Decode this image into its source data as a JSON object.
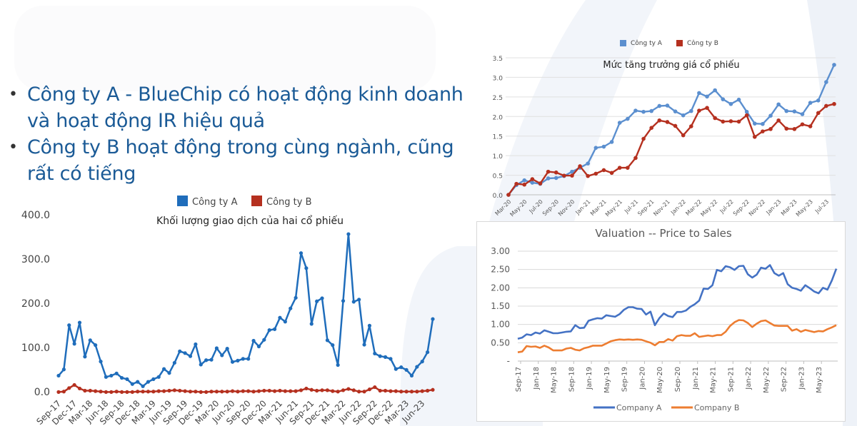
{
  "slide": {
    "bullets": [
      "Công ty A - BlueChip có hoạt động kinh doanh và hoạt động IR hiệu quả",
      "Công ty B hoạt động trong cùng ngành, cũng rất có tiếng"
    ],
    "bullet_lines": [
      [
        "Công ty A - BlueChip có hoạt động kinh doanh",
        "và hoạt động IR hiệu quả"
      ],
      [
        "Công ty B hoạt động trong cùng ngành, cũng",
        "rất có tiếng"
      ]
    ]
  },
  "colors": {
    "text_blue": "#1a5a96",
    "volume_a": "#1f6dbb",
    "volume_b": "#b5301f",
    "growth_a": "#5b8fcf",
    "growth_b": "#b5301f",
    "ps_a": "#4472c4",
    "ps_b": "#ed7d31",
    "grid": "#e0e0e0"
  },
  "chart_data": [
    {
      "id": "volume",
      "type": "line",
      "title": "Khối lượng giao dịch của hai cổ phiếu",
      "legend": [
        "Công ty A",
        "Công ty B"
      ],
      "legend_position": "top",
      "xlabel": "",
      "ylabel": "",
      "ylim": [
        0,
        400
      ],
      "yticks": [
        "0.0",
        "100.0",
        "200.0",
        "300.0",
        "400.0"
      ],
      "grid": false,
      "x_tick_labels": [
        "Sep-17",
        "Dec-17",
        "Mar-18",
        "Jun-18",
        "Sep-18",
        "Dec-18",
        "Mar-19",
        "Jun-19",
        "Sep-19",
        "Dec-19",
        "Mar-20",
        "Jun-20",
        "Sep-20",
        "Dec-20",
        "Mar-21",
        "Jun-21",
        "Sep-21",
        "Dec-21",
        "Mar-22",
        "Jun-22",
        "Sep-22",
        "Dec-22",
        "Mar-23",
        "Jun-23"
      ],
      "series": [
        {
          "name": "Công ty A",
          "values": [
            38,
            52,
            152,
            110,
            158,
            81,
            118,
            107,
            70,
            35,
            38,
            43,
            33,
            30,
            19,
            24,
            14,
            24,
            30,
            35,
            53,
            44,
            67,
            93,
            89,
            82,
            109,
            63,
            73,
            74,
            100,
            84,
            99,
            69,
            72,
            76,
            76,
            117,
            104,
            119,
            141,
            143,
            169,
            160,
            190,
            214,
            315,
            281,
            155,
            206,
            213,
            118,
            107,
            62,
            207,
            358,
            205,
            210,
            108,
            151,
            88,
            82,
            80,
            76,
            53,
            57,
            51,
            38,
            58,
            70,
            91,
            166
          ]
        },
        {
          "name": "Công ty B",
          "values": [
            1,
            2,
            10,
            17,
            9,
            4,
            4,
            3,
            2,
            1,
            1,
            2,
            1,
            1,
            1,
            2,
            2,
            2,
            2,
            3,
            3,
            4,
            5,
            4,
            3,
            2,
            2,
            1,
            1,
            2,
            2,
            2,
            2,
            3,
            2,
            3,
            3,
            2,
            3,
            4,
            4,
            3,
            4,
            3,
            3,
            3,
            5,
            9,
            6,
            4,
            5,
            5,
            3,
            2,
            5,
            8,
            5,
            2,
            2,
            7,
            12,
            4,
            4,
            3,
            3,
            2,
            2,
            2,
            2,
            3,
            4,
            6
          ]
        }
      ]
    },
    {
      "id": "growth",
      "type": "line",
      "title": "Mức tăng trưởng giá cổ phiếu",
      "legend": [
        "Công ty A",
        "Công ty B"
      ],
      "legend_position": "top",
      "xlabel": "",
      "ylabel": "",
      "ylim": [
        0,
        3.5
      ],
      "yticks": [
        "0.0",
        "0.5",
        "1.0",
        "1.5",
        "2.0",
        "2.5",
        "3.0",
        "3.5"
      ],
      "grid": true,
      "x_tick_labels": [
        "Mar-20",
        "May-20",
        "Jul-20",
        "Sep-20",
        "Nov-20",
        "Jan-21",
        "Mar-21",
        "May-21",
        "Jul-21",
        "Sep-21",
        "Nov-21",
        "Jan-22",
        "Mar-22",
        "May-22",
        "Jul-22",
        "Sep-22",
        "Nov-22",
        "Jan-23",
        "Mar-23",
        "May-23",
        "Jul-23"
      ],
      "series": [
        {
          "name": "Công ty A",
          "values": [
            0.0,
            0.25,
            0.37,
            0.31,
            0.28,
            0.42,
            0.43,
            0.48,
            0.59,
            0.69,
            0.8,
            1.2,
            1.23,
            1.35,
            1.84,
            1.94,
            2.15,
            2.12,
            2.14,
            2.27,
            2.28,
            2.13,
            2.03,
            2.14,
            2.6,
            2.51,
            2.67,
            2.44,
            2.32,
            2.43,
            2.12,
            1.82,
            1.81,
            2.02,
            2.31,
            2.14,
            2.13,
            2.06,
            2.35,
            2.41,
            2.88,
            3.32
          ]
        },
        {
          "name": "Công ty B",
          "values": [
            0.0,
            0.28,
            0.26,
            0.4,
            0.29,
            0.59,
            0.57,
            0.49,
            0.49,
            0.73,
            0.48,
            0.54,
            0.63,
            0.56,
            0.69,
            0.69,
            0.94,
            1.43,
            1.71,
            1.9,
            1.86,
            1.76,
            1.52,
            1.75,
            2.15,
            2.22,
            1.96,
            1.87,
            1.88,
            1.87,
            2.03,
            1.48,
            1.62,
            1.68,
            1.9,
            1.69,
            1.68,
            1.8,
            1.75,
            2.09,
            2.27,
            2.32
          ]
        }
      ]
    },
    {
      "id": "ps",
      "type": "line",
      "title": "Valuation -- Price to Sales",
      "legend": [
        "Company A",
        "Company B"
      ],
      "legend_position": "bottom",
      "xlabel": "",
      "ylabel": "",
      "ylim": [
        0,
        3.0
      ],
      "yticks": [
        "-",
        "0.50",
        "1.00",
        "1.50",
        "2.00",
        "2.50",
        "3.00"
      ],
      "grid": true,
      "x_tick_labels": [
        "Sep-17",
        "Jan-18",
        "May-18",
        "Sep-18",
        "Jan-19",
        "May-19",
        "Sep-19",
        "Jan-20",
        "May-20",
        "Sep-20",
        "Jan-21",
        "May-21",
        "Sep-21",
        "Jan-22",
        "May-22",
        "Sep-22",
        "Jan-23",
        "May-23"
      ],
      "series": [
        {
          "name": "Company A",
          "values": [
            0.61,
            0.64,
            0.73,
            0.71,
            0.78,
            0.75,
            0.84,
            0.8,
            0.76,
            0.76,
            0.78,
            0.8,
            0.81,
            0.98,
            0.9,
            0.91,
            1.1,
            1.14,
            1.17,
            1.16,
            1.25,
            1.23,
            1.21,
            1.28,
            1.4,
            1.47,
            1.47,
            1.43,
            1.42,
            1.27,
            1.35,
            0.98,
            1.17,
            1.3,
            1.23,
            1.2,
            1.34,
            1.34,
            1.38,
            1.48,
            1.55,
            1.65,
            1.98,
            1.97,
            2.07,
            2.49,
            2.45,
            2.59,
            2.56,
            2.49,
            2.59,
            2.6,
            2.37,
            2.28,
            2.36,
            2.55,
            2.52,
            2.62,
            2.4,
            2.33,
            2.4,
            2.1,
            2.0,
            1.97,
            1.92,
            2.07,
            1.99,
            1.9,
            1.85,
            2.0,
            1.95,
            2.2,
            2.52
          ]
        },
        {
          "name": "Company B",
          "values": [
            0.24,
            0.26,
            0.41,
            0.39,
            0.4,
            0.36,
            0.42,
            0.37,
            0.29,
            0.29,
            0.29,
            0.34,
            0.36,
            0.31,
            0.29,
            0.35,
            0.38,
            0.42,
            0.42,
            0.42,
            0.48,
            0.54,
            0.57,
            0.59,
            0.58,
            0.59,
            0.58,
            0.59,
            0.58,
            0.54,
            0.5,
            0.43,
            0.52,
            0.52,
            0.6,
            0.56,
            0.68,
            0.71,
            0.69,
            0.69,
            0.76,
            0.66,
            0.68,
            0.7,
            0.68,
            0.71,
            0.71,
            0.8,
            0.96,
            1.06,
            1.12,
            1.11,
            1.04,
            0.93,
            1.02,
            1.09,
            1.11,
            1.04,
            0.97,
            0.96,
            0.96,
            0.96,
            0.83,
            0.87,
            0.8,
            0.85,
            0.82,
            0.79,
            0.82,
            0.81,
            0.87,
            0.92,
            0.98
          ]
        }
      ]
    }
  ]
}
